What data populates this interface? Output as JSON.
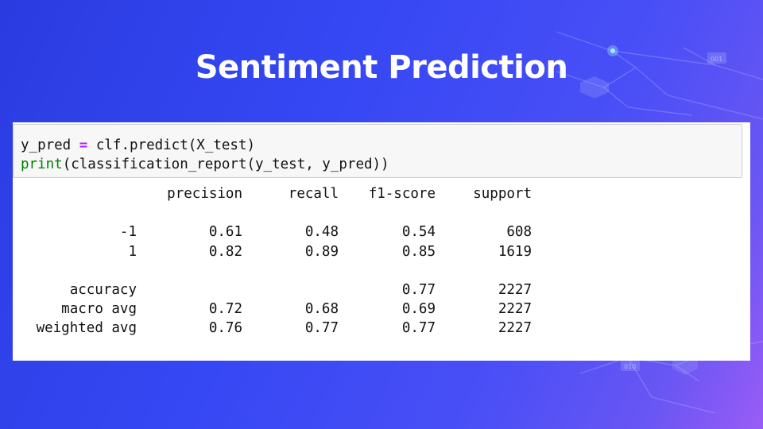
{
  "slide": {
    "title": "Sentiment Prediction",
    "colors": {
      "background_start": "#2a3ce0",
      "background_end": "#9a5cf6",
      "title": "#ffffff"
    },
    "decor_labels": [
      "001",
      "010"
    ]
  },
  "code_cell": {
    "line1": {
      "var": "y_pred ",
      "op": "=",
      "rest": " clf.predict(X_test)"
    },
    "line2": {
      "fn": "print",
      "rest": "(classification_report(y_test, y_pred))"
    }
  },
  "report": {
    "headers": [
      "precision",
      "recall",
      "f1-score",
      "support"
    ],
    "class_rows": [
      {
        "label": "-1",
        "precision": "0.61",
        "recall": "0.48",
        "f1": "0.54",
        "support": "608"
      },
      {
        "label": "1",
        "precision": "0.82",
        "recall": "0.89",
        "f1": "0.85",
        "support": "1619"
      }
    ],
    "summary_rows": [
      {
        "label": "accuracy",
        "precision": "",
        "recall": "",
        "f1": "0.77",
        "support": "2227"
      },
      {
        "label": "macro avg",
        "precision": "0.72",
        "recall": "0.68",
        "f1": "0.69",
        "support": "2227"
      },
      {
        "label": "weighted avg",
        "precision": "0.76",
        "recall": "0.77",
        "f1": "0.77",
        "support": "2227"
      }
    ]
  }
}
